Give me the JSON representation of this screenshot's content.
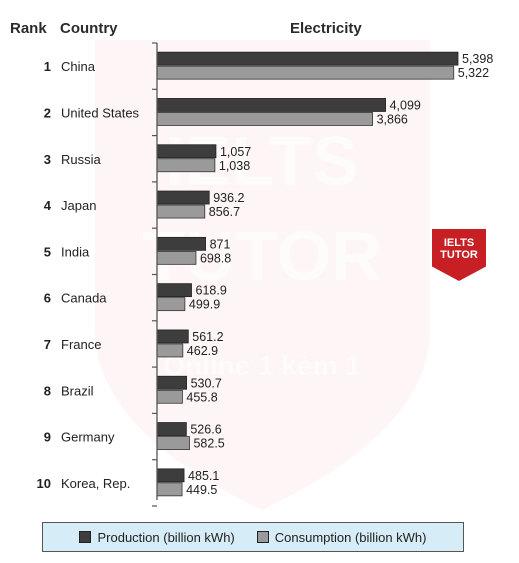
{
  "headers": {
    "rank": "Rank",
    "country": "Country",
    "electricity": "Electricity"
  },
  "chart_data": {
    "type": "bar",
    "orientation": "horizontal",
    "title": "Electricity",
    "rows": [
      {
        "rank": "1",
        "country": "China",
        "production": 5398,
        "consumption": 5322,
        "production_label": "5,398",
        "consumption_label": "5,322"
      },
      {
        "rank": "2",
        "country": "United States",
        "production": 4099,
        "consumption": 3866,
        "production_label": "4,099",
        "consumption_label": "3,866"
      },
      {
        "rank": "3",
        "country": "Russia",
        "production": 1057,
        "consumption": 1038,
        "production_label": "1,057",
        "consumption_label": "1,038"
      },
      {
        "rank": "4",
        "country": "Japan",
        "production": 936.2,
        "consumption": 856.7,
        "production_label": "936.2",
        "consumption_label": "856.7"
      },
      {
        "rank": "5",
        "country": "India",
        "production": 871,
        "consumption": 698.8,
        "production_label": "871",
        "consumption_label": "698.8"
      },
      {
        "rank": "6",
        "country": "Canada",
        "production": 618.9,
        "consumption": 499.9,
        "production_label": "618.9",
        "consumption_label": "499.9"
      },
      {
        "rank": "7",
        "country": "France",
        "production": 561.2,
        "consumption": 462.9,
        "production_label": "561.2",
        "consumption_label": "462.9"
      },
      {
        "rank": "8",
        "country": "Brazil",
        "production": 530.7,
        "consumption": 455.8,
        "production_label": "530.7",
        "consumption_label": "455.8"
      },
      {
        "rank": "9",
        "country": "Germany",
        "production": 526.6,
        "consumption": 582.5,
        "production_label": "526.6",
        "consumption_label": "582.5"
      },
      {
        "rank": "10",
        "country": "Korea, Rep.",
        "production": 485.1,
        "consumption": 449.5,
        "production_label": "485.1",
        "consumption_label": "449.5"
      }
    ],
    "series": [
      {
        "key": "production",
        "name": "Production (billion kWh)",
        "color": "#3d3d3d"
      },
      {
        "key": "consumption",
        "name": "Consumption (billion kWh)",
        "color": "#9a9a9a"
      }
    ],
    "xlim": [
      0,
      5398
    ],
    "grid": false,
    "legend_position": "bottom"
  },
  "watermark": {
    "line1": "IELTS",
    "line2": "TUTOR",
    "line3": "Online 1 kèm 1",
    "badge_line1": "IELTS",
    "badge_line2": "TUTOR",
    "color": "#c81f24"
  }
}
